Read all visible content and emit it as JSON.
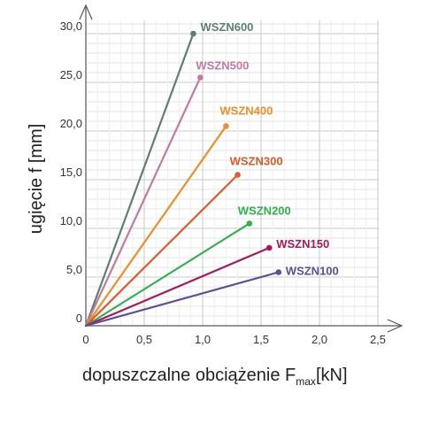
{
  "chart_data": {
    "type": "line",
    "xlabel": "dopuszczalne obciążenie F",
    "xlabel_sub": "max",
    "xlabel_unit": "[kN]",
    "ylabel": "ugięcie f [mm]",
    "xlim": [
      0,
      2.5
    ],
    "ylim": [
      0,
      30
    ],
    "x_ticks": [
      "0",
      "0,5",
      "1,0",
      "1,5",
      "2,0",
      "2,5"
    ],
    "y_ticks": [
      "0",
      "5,0",
      "10,0",
      "15,0",
      "20,0",
      "25,0",
      "30,0"
    ],
    "grid": true,
    "series": [
      {
        "name": "WSZN600",
        "color": "#5e7f6f",
        "x": [
          0,
          0.92
        ],
        "y": [
          0,
          30.0
        ]
      },
      {
        "name": "WSZN500",
        "color": "#c47aa0",
        "x": [
          0,
          0.98
        ],
        "y": [
          0,
          25.5
        ]
      },
      {
        "name": "WSZN400",
        "color": "#ee8e28",
        "x": [
          0,
          1.2
        ],
        "y": [
          0,
          20.5
        ]
      },
      {
        "name": "WSZN300",
        "color": "#e05a2a",
        "x": [
          0,
          1.3
        ],
        "y": [
          0,
          15.5
        ]
      },
      {
        "name": "WSZN200",
        "color": "#2db34a",
        "x": [
          0,
          1.4
        ],
        "y": [
          0,
          10.5
        ]
      },
      {
        "name": "WSZN150",
        "color": "#a8195a",
        "x": [
          0,
          1.57
        ],
        "y": [
          0,
          8.0
        ]
      },
      {
        "name": "WSZN100",
        "color": "#5a4f9a",
        "x": [
          0,
          1.65
        ],
        "y": [
          0,
          5.5
        ]
      }
    ]
  }
}
